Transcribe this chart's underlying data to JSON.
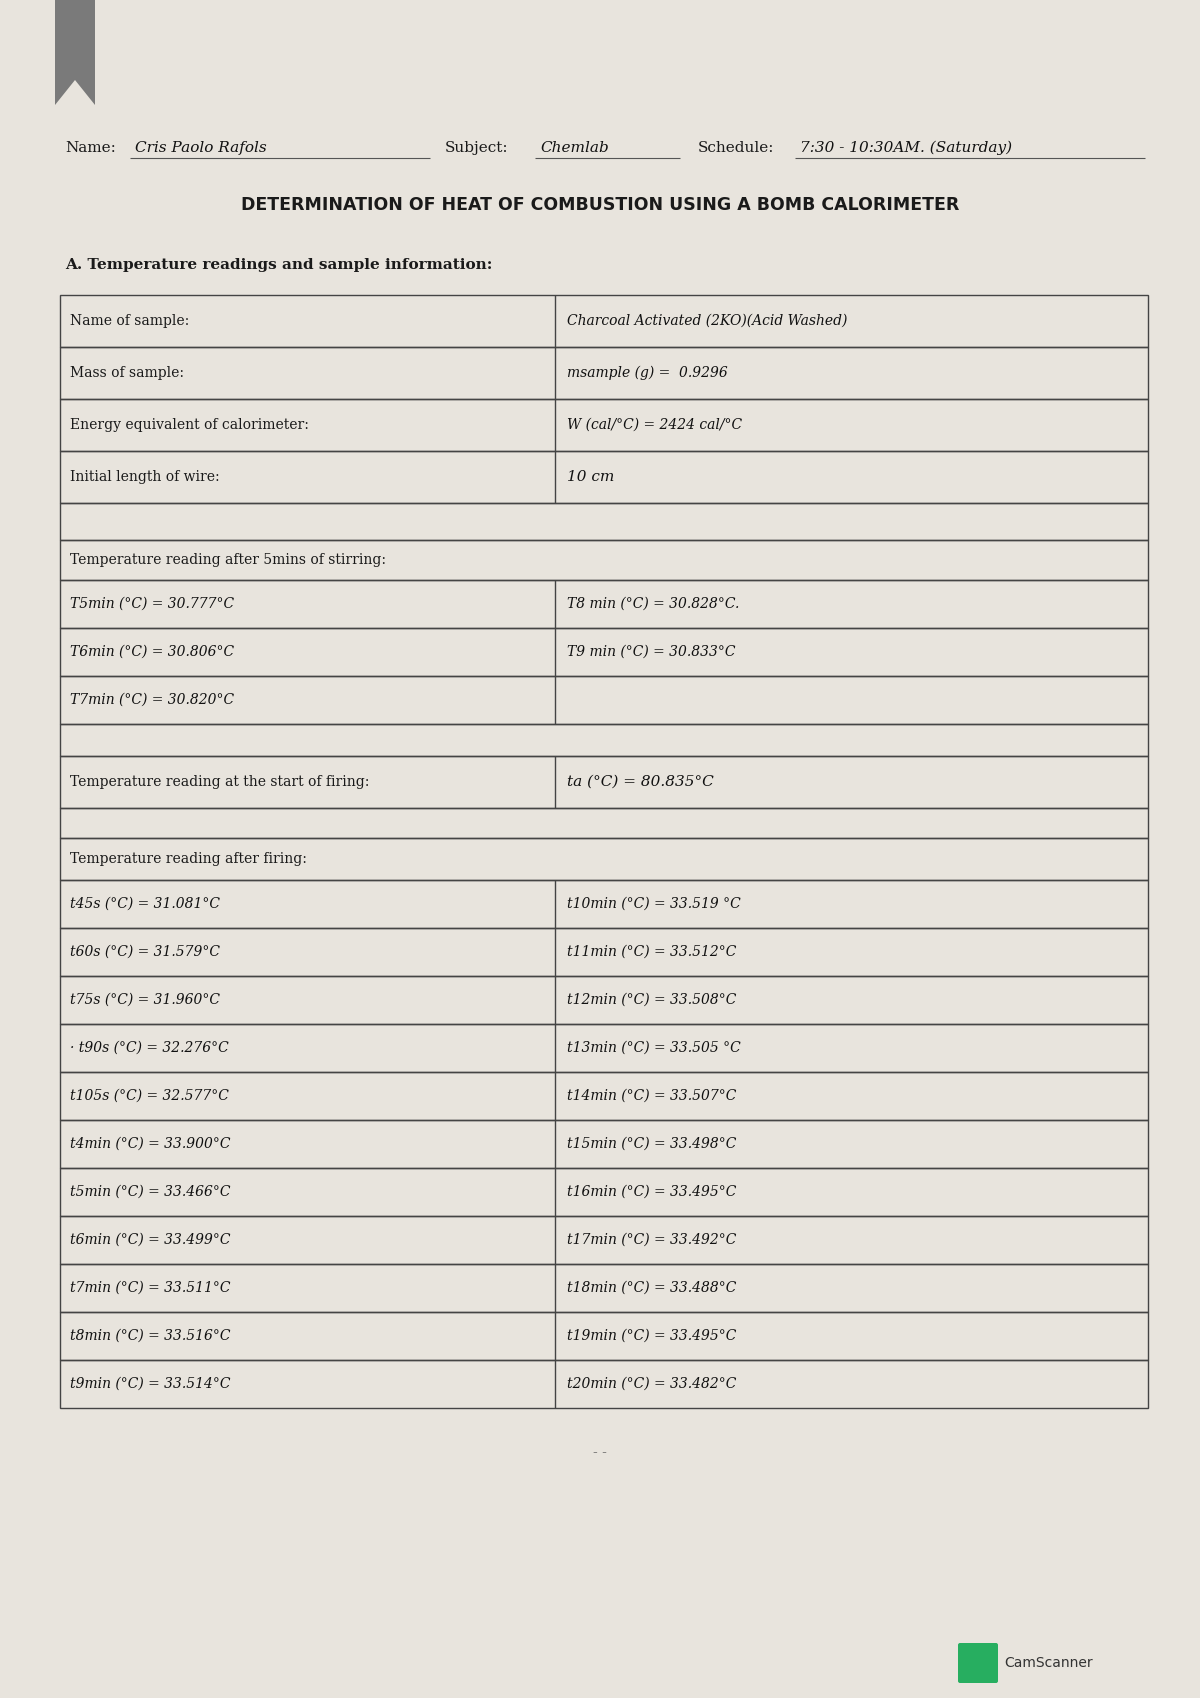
{
  "bg_color": "#e8e4dd",
  "paper_color": "#ede9e2",
  "line_color": "#444444",
  "text_color": "#1a1a1a",
  "hand_color": "#111111",
  "name_label": "Name:",
  "name_val": "Cris Paolo Rafols",
  "subject_label": "Subject:",
  "subject_val": "Chemlab",
  "schedule_label": "Schedule:",
  "schedule_val": "7:30 - 10:30AM. (Saturday)",
  "title": "DETERMINATION OF HEAT OF COMBUSTION USING A BOMB CALORIMETER",
  "section_a": "A. Temperature readings and sample information:",
  "row1_label": "Name of sample:",
  "row1_val": "Charcoal Activated (2KO)(Acid Washed)",
  "row2_label": "Mass of sample:",
  "row2_val": "msample (g) =  0.9296",
  "row3_label": "Energy equivalent of calorimeter:",
  "row3_val": "W (cal/°C) = 2424 cal/°C",
  "row4_label": "Initial length of wire:",
  "row4_val": "10 cm",
  "stir_header": "Temperature reading after 5mins of stirring:",
  "t5": "T5min (°C) = 30.777°C",
  "t6": "T6min (°C) = 30.806°C",
  "t7": "T7min (°C) = 30.820°C",
  "t8": "T8 min (°C) = 30.828°C.",
  "t9": "T9 min (°C) = 30.833°C",
  "fire_label": "Temperature reading at the start of firing:",
  "fire_val": "ta (°C) = 80.835°C",
  "after_header": "Temperature reading after firing:",
  "l1": "t45s (°C) = 31.081°C",
  "l2": "t60s (°C) = 31.579°C",
  "l3": "t75s (°C) = 31.960°C",
  "l4": "· t90s (°C) = 32.276°C",
  "l5": "t105s (°C) = 32.577°C",
  "l6": "t4min (°C) = 33.900°C",
  "l7": "t5min (°C) = 33.466°C",
  "l8": "t6min (°C) = 33.499°C",
  "l9": "t7min (°C) = 33.511°C",
  "l10": "t8min (°C) = 33.516°C",
  "l11": "t9min (°C) = 33.514°C",
  "r1": "t10min (°C) = 33.519 °C",
  "r2": "t11min (°C) = 33.512°C",
  "r3": "t12min (°C) = 33.508°C",
  "r4": "t13min (°C) = 33.505 °C",
  "r5": "t14min (°C) = 33.507°C",
  "r6": "t15min (°C) = 33.498°C",
  "r7": "t16min (°C) = 33.495°C",
  "r8": "t17min (°C) = 33.492°C",
  "r9": "t18min (°C) = 33.488°C",
  "r10": "t19min (°C) = 33.495°C",
  "r11": "t20min (°C) = 33.482°C",
  "cam_green": "#27ae60",
  "page_num": "- -"
}
